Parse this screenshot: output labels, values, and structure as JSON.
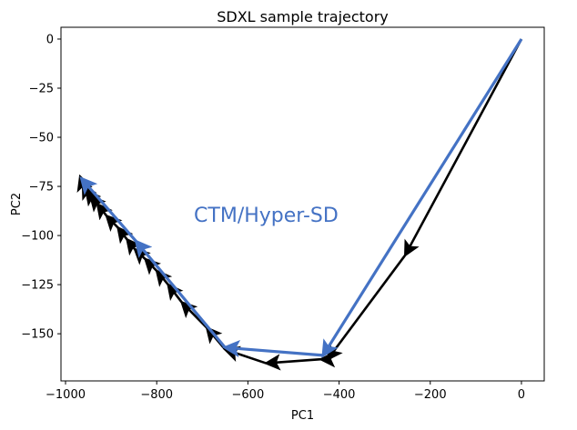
{
  "chart_data": {
    "type": "line",
    "title": "SDXL sample trajectory",
    "xlabel": "PC1",
    "ylabel": "PC2",
    "xlim": [
      -1010,
      50
    ],
    "ylim": [
      -174,
      6
    ],
    "xticks": [
      -1000,
      -800,
      -600,
      -400,
      -200,
      0
    ],
    "yticks": [
      0,
      -25,
      -50,
      -75,
      -100,
      -125,
      -150
    ],
    "xtick_labels": [
      "−1000",
      "−800",
      "−600",
      "−400",
      "−200",
      "0"
    ],
    "ytick_labels": [
      "0",
      "−25",
      "−50",
      "−75",
      "−100",
      "−125",
      "−150"
    ],
    "grid": false,
    "legend": "none",
    "annotation": {
      "text": "CTM/Hyper-SD",
      "x": -560,
      "y": -93,
      "color": "#4472C4"
    },
    "series": [
      {
        "color": "#000000",
        "style": "arrows",
        "x": [
          0,
          -255,
          -425,
          -440,
          -560,
          -650,
          -690,
          -745,
          -775,
          -800,
          -825,
          -848,
          -865,
          -885,
          -910,
          -930,
          -945,
          -955,
          -962,
          -968
        ],
        "y": [
          0,
          -110,
          -163,
          -163,
          -165,
          -158,
          -147,
          -134,
          -125,
          -118,
          -112,
          -107,
          -102,
          -96,
          -90,
          -84,
          -80,
          -77,
          -74,
          -70
        ]
      },
      {
        "color": "#4472C4",
        "style": "arrows",
        "x": [
          0,
          -435,
          -650,
          -845,
          -965
        ],
        "y": [
          0,
          -161,
          -157,
          -103,
          -71
        ]
      }
    ]
  }
}
